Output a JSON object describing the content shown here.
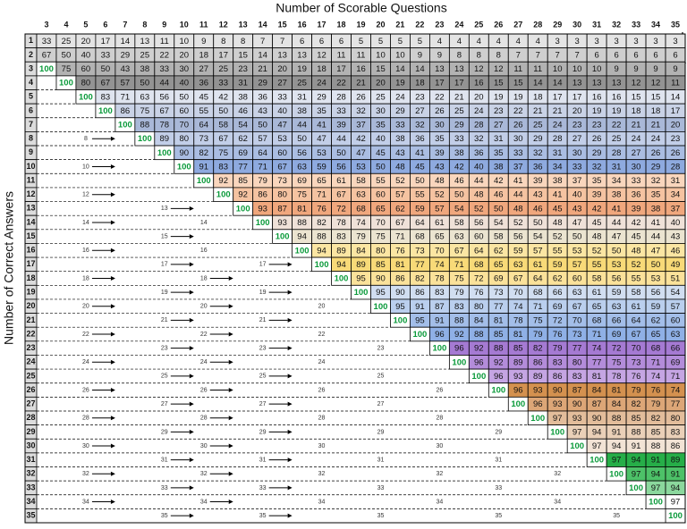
{
  "header": {
    "title": "Number of Scorable Questions",
    "y_axis_label": "Number of Correct Answers"
  },
  "columns": [
    3,
    4,
    5,
    6,
    7,
    8,
    9,
    10,
    11,
    12,
    13,
    14,
    15,
    16,
    17,
    18,
    19,
    20,
    21,
    22,
    23,
    24,
    25,
    26,
    27,
    28,
    29,
    30,
    31,
    32,
    33,
    34,
    35
  ],
  "rows": [
    {
      "label": 1,
      "cells": [
        33,
        25,
        20,
        17,
        14,
        13,
        11,
        10,
        9,
        8,
        8,
        7,
        7,
        6,
        6,
        6,
        5,
        5,
        5,
        5,
        4,
        4,
        4,
        4,
        4,
        4,
        3,
        3,
        3,
        3,
        3,
        3,
        3
      ]
    },
    {
      "label": 2,
      "cells": [
        67,
        50,
        40,
        33,
        29,
        25,
        22,
        20,
        18,
        17,
        15,
        14,
        13,
        13,
        12,
        11,
        11,
        10,
        10,
        9,
        9,
        8,
        8,
        8,
        7,
        7,
        7,
        7,
        6,
        6,
        6,
        6,
        6
      ]
    },
    {
      "label": 3,
      "cells": [
        100,
        75,
        60,
        50,
        43,
        38,
        33,
        30,
        27,
        25,
        23,
        21,
        20,
        19,
        18,
        17,
        16,
        15,
        14,
        14,
        13,
        13,
        12,
        12,
        11,
        11,
        10,
        10,
        10,
        9,
        9,
        9,
        9
      ]
    },
    {
      "label": 4,
      "cells": [
        100,
        80,
        67,
        57,
        50,
        44,
        40,
        36,
        33,
        31,
        29,
        27,
        25,
        24,
        22,
        21,
        20,
        19,
        18,
        17,
        17,
        16,
        15,
        15,
        14,
        14,
        13,
        13,
        13,
        12,
        12,
        11
      ]
    },
    {
      "label": 5,
      "cells": [
        100,
        83,
        71,
        63,
        56,
        50,
        45,
        42,
        38,
        36,
        33,
        31,
        29,
        28,
        26,
        25,
        24,
        23,
        22,
        21,
        20,
        19,
        19,
        18,
        17,
        17,
        16,
        16,
        15,
        15,
        14
      ]
    },
    {
      "label": 6,
      "cells": [
        100,
        86,
        75,
        67,
        60,
        55,
        50,
        46,
        43,
        40,
        38,
        35,
        33,
        32,
        30,
        29,
        27,
        26,
        25,
        24,
        23,
        22,
        21,
        21,
        20,
        19,
        19,
        18,
        18,
        17
      ]
    },
    {
      "label": 7,
      "cells": [
        100,
        88,
        78,
        70,
        64,
        58,
        54,
        50,
        47,
        44,
        41,
        39,
        37,
        35,
        33,
        32,
        30,
        29,
        28,
        27,
        26,
        25,
        24,
        23,
        23,
        22,
        21,
        21,
        20
      ]
    },
    {
      "label": 8,
      "cells": [
        100,
        89,
        80,
        73,
        67,
        62,
        57,
        53,
        50,
        47,
        44,
        42,
        40,
        38,
        36,
        35,
        33,
        32,
        31,
        30,
        29,
        28,
        27,
        26,
        25,
        24,
        24,
        23
      ]
    },
    {
      "label": 9,
      "cells": [
        100,
        90,
        82,
        75,
        69,
        64,
        60,
        56,
        53,
        50,
        47,
        45,
        43,
        41,
        39,
        38,
        36,
        35,
        33,
        32,
        31,
        30,
        29,
        28,
        27,
        26,
        26
      ]
    },
    {
      "label": 10,
      "cells": [
        100,
        91,
        83,
        77,
        71,
        67,
        63,
        59,
        56,
        53,
        50,
        48,
        45,
        43,
        42,
        40,
        38,
        37,
        36,
        34,
        33,
        32,
        31,
        30,
        29,
        28
      ]
    },
    {
      "label": 11,
      "cells": [
        100,
        92,
        85,
        79,
        73,
        69,
        65,
        61,
        58,
        55,
        52,
        50,
        48,
        46,
        44,
        42,
        41,
        39,
        38,
        37,
        35,
        34,
        33,
        32,
        31
      ]
    },
    {
      "label": 12,
      "cells": [
        100,
        92,
        86,
        80,
        75,
        71,
        67,
        63,
        60,
        57,
        55,
        52,
        50,
        48,
        46,
        44,
        43,
        41,
        40,
        39,
        38,
        36,
        35,
        34
      ]
    },
    {
      "label": 13,
      "cells": [
        100,
        93,
        87,
        81,
        76,
        72,
        68,
        65,
        62,
        59,
        57,
        54,
        52,
        50,
        48,
        46,
        45,
        43,
        42,
        41,
        39,
        38,
        37
      ]
    },
    {
      "label": 14,
      "cells": [
        100,
        93,
        88,
        82,
        78,
        74,
        70,
        67,
        64,
        61,
        58,
        56,
        54,
        52,
        50,
        48,
        47,
        45,
        44,
        42,
        41,
        40
      ]
    },
    {
      "label": 15,
      "cells": [
        100,
        94,
        88,
        83,
        79,
        75,
        71,
        68,
        65,
        63,
        60,
        58,
        56,
        54,
        52,
        50,
        48,
        47,
        45,
        44,
        43
      ]
    },
    {
      "label": 16,
      "cells": [
        100,
        94,
        89,
        84,
        80,
        76,
        73,
        70,
        67,
        64,
        62,
        59,
        57,
        55,
        53,
        52,
        50,
        48,
        47,
        46
      ]
    },
    {
      "label": 17,
      "cells": [
        100,
        94,
        89,
        85,
        81,
        77,
        74,
        71,
        68,
        65,
        63,
        61,
        59,
        57,
        55,
        53,
        52,
        50,
        49
      ]
    },
    {
      "label": 18,
      "cells": [
        100,
        95,
        90,
        86,
        82,
        78,
        75,
        72,
        69,
        67,
        64,
        62,
        60,
        58,
        56,
        55,
        53,
        51
      ]
    },
    {
      "label": 19,
      "cells": [
        100,
        95,
        90,
        86,
        83,
        79,
        76,
        73,
        70,
        68,
        66,
        63,
        61,
        59,
        58,
        56,
        54
      ]
    },
    {
      "label": 20,
      "cells": [
        100,
        95,
        91,
        87,
        83,
        80,
        77,
        74,
        71,
        69,
        67,
        65,
        63,
        61,
        59,
        57
      ]
    },
    {
      "label": 21,
      "cells": [
        100,
        95,
        91,
        88,
        84,
        81,
        78,
        75,
        72,
        70,
        68,
        66,
        64,
        62,
        60
      ]
    },
    {
      "label": 22,
      "cells": [
        100,
        96,
        92,
        88,
        85,
        81,
        79,
        76,
        73,
        71,
        69,
        67,
        65,
        63
      ]
    },
    {
      "label": 23,
      "cells": [
        100,
        96,
        92,
        88,
        85,
        82,
        79,
        77,
        74,
        72,
        70,
        68,
        66
      ]
    },
    {
      "label": 24,
      "cells": [
        100,
        96,
        92,
        89,
        86,
        83,
        80,
        77,
        75,
        73,
        71,
        69
      ]
    },
    {
      "label": 25,
      "cells": [
        100,
        96,
        93,
        89,
        86,
        83,
        81,
        78,
        76,
        74,
        71
      ]
    },
    {
      "label": 26,
      "cells": [
        100,
        96,
        93,
        90,
        87,
        84,
        81,
        79,
        76,
        74
      ]
    },
    {
      "label": 27,
      "cells": [
        100,
        96,
        93,
        90,
        87,
        84,
        82,
        79,
        77
      ]
    },
    {
      "label": 28,
      "cells": [
        100,
        97,
        93,
        90,
        88,
        85,
        82,
        80
      ]
    },
    {
      "label": 29,
      "cells": [
        100,
        97,
        94,
        91,
        88,
        85,
        83
      ]
    },
    {
      "label": 30,
      "cells": [
        100,
        97,
        94,
        91,
        88,
        86
      ]
    },
    {
      "label": 31,
      "cells": [
        100,
        97,
        94,
        91,
        89
      ]
    },
    {
      "label": 32,
      "cells": [
        100,
        97,
        94,
        91
      ]
    },
    {
      "label": 33,
      "cells": [
        100,
        97,
        94
      ]
    },
    {
      "label": 34,
      "cells": [
        100,
        97
      ]
    },
    {
      "label": 35,
      "cells": [
        100
      ]
    }
  ]
}
